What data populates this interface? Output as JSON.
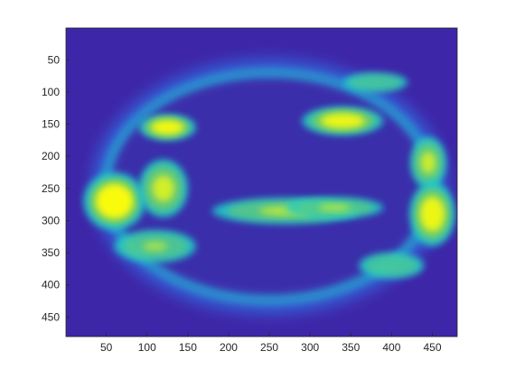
{
  "chart_data": {
    "type": "heatmap",
    "title": "",
    "xlabel": "",
    "ylabel": "",
    "colormap": "parula",
    "colors": {
      "background": "#3e26a8",
      "low": "#3e26a8",
      "mid_blue": "#2e87f7",
      "cyan": "#24cbc9",
      "green": "#7ccd5a",
      "high": "#f9fb0e",
      "axes": "#262626"
    },
    "xlim": [
      0.5,
      480.5
    ],
    "ylim": [
      0.5,
      480.5
    ],
    "y_reversed": true,
    "x_ticks": [
      50,
      100,
      150,
      200,
      250,
      300,
      350,
      400,
      450
    ],
    "x_tick_labels": [
      "50",
      "100",
      "150",
      "200",
      "250",
      "300",
      "350",
      "400",
      "450"
    ],
    "y_ticks": [
      50,
      100,
      150,
      200,
      250,
      300,
      350,
      400,
      450
    ],
    "y_tick_labels": [
      "50",
      "100",
      "150",
      "200",
      "250",
      "300",
      "350",
      "400",
      "450"
    ],
    "grid": false,
    "legend": "none",
    "disc": {
      "center_x": 250,
      "center_y": 247,
      "radius_x": 207,
      "radius_y": 185
    },
    "bright_regions": [
      {
        "x": 125,
        "y": 155,
        "rx": 35,
        "ry": 20,
        "intensity": 0.95
      },
      {
        "x": 340,
        "y": 145,
        "rx": 50,
        "ry": 22,
        "intensity": 0.9
      },
      {
        "x": 445,
        "y": 210,
        "rx": 22,
        "ry": 40,
        "intensity": 0.7
      },
      {
        "x": 60,
        "y": 270,
        "rx": 38,
        "ry": 45,
        "intensity": 1.0
      },
      {
        "x": 120,
        "y": 250,
        "rx": 30,
        "ry": 45,
        "intensity": 0.75
      },
      {
        "x": 450,
        "y": 290,
        "rx": 28,
        "ry": 50,
        "intensity": 0.9
      },
      {
        "x": 270,
        "y": 285,
        "rx": 90,
        "ry": 20,
        "intensity": 0.6
      },
      {
        "x": 330,
        "y": 280,
        "rx": 60,
        "ry": 16,
        "intensity": 0.55
      },
      {
        "x": 110,
        "y": 340,
        "rx": 50,
        "ry": 25,
        "intensity": 0.5
      },
      {
        "x": 400,
        "y": 370,
        "rx": 40,
        "ry": 20,
        "intensity": 0.4
      },
      {
        "x": 380,
        "y": 85,
        "rx": 40,
        "ry": 15,
        "intensity": 0.4
      }
    ]
  }
}
